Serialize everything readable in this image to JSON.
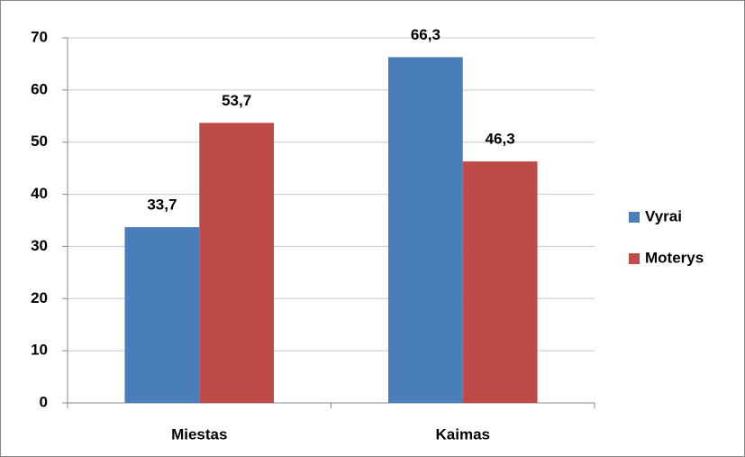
{
  "chart_data": {
    "type": "bar",
    "categories": [
      "Miestas",
      "Kaimas"
    ],
    "series": [
      {
        "name": "Vyrai",
        "color": "#4a7ebb",
        "values": [
          33.7,
          66.3
        ],
        "value_labels": [
          "33,7",
          "66,3"
        ]
      },
      {
        "name": "Moterys",
        "color": "#be4b48",
        "values": [
          53.7,
          46.3
        ],
        "value_labels": [
          "53,7",
          "46,3"
        ]
      }
    ],
    "ylim": [
      0,
      70
    ],
    "yticks": [
      0,
      10,
      20,
      30,
      40,
      50,
      60,
      70
    ],
    "grid": true,
    "legend": "right"
  }
}
